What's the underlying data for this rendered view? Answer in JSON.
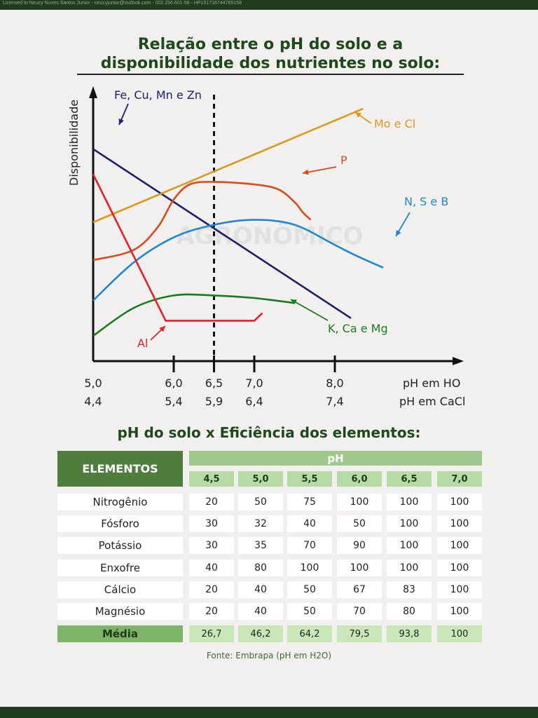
{
  "header": {
    "license_text": "Licensed to Neucy Nunes Santos Junior - neucyjunior@outlook.com - 002.256.601-56 - HP151716744785158"
  },
  "title_line1": "Relação entre o pH do solo e a",
  "title_line2": "disponibilidade dos nutrientes no solo:",
  "watermark": "AGRONÔMICO",
  "chart_data": {
    "type": "line",
    "title": "Relação entre o pH do solo e a disponibilidade dos nutrientes no solo:",
    "ylabel": "Disponibilidade",
    "xlabel_primary": "pH em H2O",
    "xlabel_secondary": "pH em CaCl2",
    "xlim": [
      5.0,
      8.3
    ],
    "ylim": [
      0,
      100
    ],
    "x_ticks_h2o": [
      "5,0",
      "6,0",
      "6,5",
      "7,0",
      "8,0"
    ],
    "x_ticks_cacl2": [
      "4,4",
      "5,4",
      "5,9",
      "6,4",
      "7,4"
    ],
    "x_tick_values": [
      5.0,
      6.0,
      6.5,
      7.0,
      8.0
    ],
    "reference_line_x": 6.5,
    "grid": false,
    "series": [
      {
        "name": "Fe, Cu, Mn e Zn",
        "color": "#1d1f6b",
        "x": [
          5.0,
          8.2
        ],
        "y": [
          84,
          17
        ]
      },
      {
        "name": "Mo e Cl",
        "color": "#d99a1e",
        "x": [
          5.0,
          8.35
        ],
        "y": [
          55,
          100
        ]
      },
      {
        "name": "P",
        "color": "#d84b1d",
        "x": [
          5.0,
          5.5,
          5.8,
          6.0,
          6.2,
          6.5,
          7.0,
          7.3,
          7.5,
          7.6,
          7.7
        ],
        "y": [
          40,
          44,
          53,
          64,
          70,
          71,
          70,
          68,
          63,
          59,
          56
        ]
      },
      {
        "name": "N, S e B",
        "color": "#1f87d0",
        "x": [
          5.0,
          5.5,
          6.0,
          6.5,
          7.0,
          7.5,
          8.0,
          8.25,
          8.6
        ],
        "y": [
          24,
          39,
          49,
          54,
          56,
          54,
          46,
          42,
          37
        ]
      },
      {
        "name": "K, Ca e Mg",
        "color": "#197a20",
        "x": [
          5.0,
          5.5,
          6.0,
          6.5,
          7.0,
          7.5
        ],
        "y": [
          10,
          21,
          26,
          26,
          25,
          23
        ]
      },
      {
        "name": "Al",
        "color": "#e3202a",
        "x": [
          5.0,
          5.9,
          7.0,
          7.1
        ],
        "y": [
          74,
          16,
          16,
          19
        ]
      }
    ],
    "labels": {
      "fe": "Fe, Cu, Mn e Zn",
      "mo": "Mo e Cl",
      "p": "P",
      "n": "N, S e B",
      "k": "K, Ca e Mg",
      "al": "Al"
    }
  },
  "table": {
    "subtitle": "pH do solo x Eficiência dos elementos:",
    "col_header": "ELEMENTOS",
    "ph_header": "pH",
    "ph_values": [
      "4,5",
      "5,0",
      "5,5",
      "6,0",
      "6,5",
      "7,0"
    ],
    "rows": [
      {
        "label": "Nitrogênio",
        "values": [
          "20",
          "50",
          "75",
          "100",
          "100",
          "100"
        ]
      },
      {
        "label": "Fósforo",
        "values": [
          "30",
          "32",
          "40",
          "50",
          "100",
          "100"
        ]
      },
      {
        "label": "Potássio",
        "values": [
          "30",
          "35",
          "70",
          "90",
          "100",
          "100"
        ]
      },
      {
        "label": "Enxofre",
        "values": [
          "40",
          "80",
          "100",
          "100",
          "100",
          "100"
        ]
      },
      {
        "label": "Cálcio",
        "values": [
          "20",
          "40",
          "50",
          "67",
          "83",
          "100"
        ]
      },
      {
        "label": "Magnésio",
        "values": [
          "20",
          "40",
          "50",
          "70",
          "80",
          "100"
        ]
      }
    ],
    "average": {
      "label": "Média",
      "values": [
        "26,7",
        "46,2",
        "64,2",
        "79,5",
        "93,8",
        "100"
      ]
    },
    "source": "Fonte: Embrapa (pH em H2O)"
  },
  "colors": {
    "brand_dark_green": "#1f3d1c",
    "header_green": "#4f7d3c",
    "light_green": "#b7dba4"
  }
}
